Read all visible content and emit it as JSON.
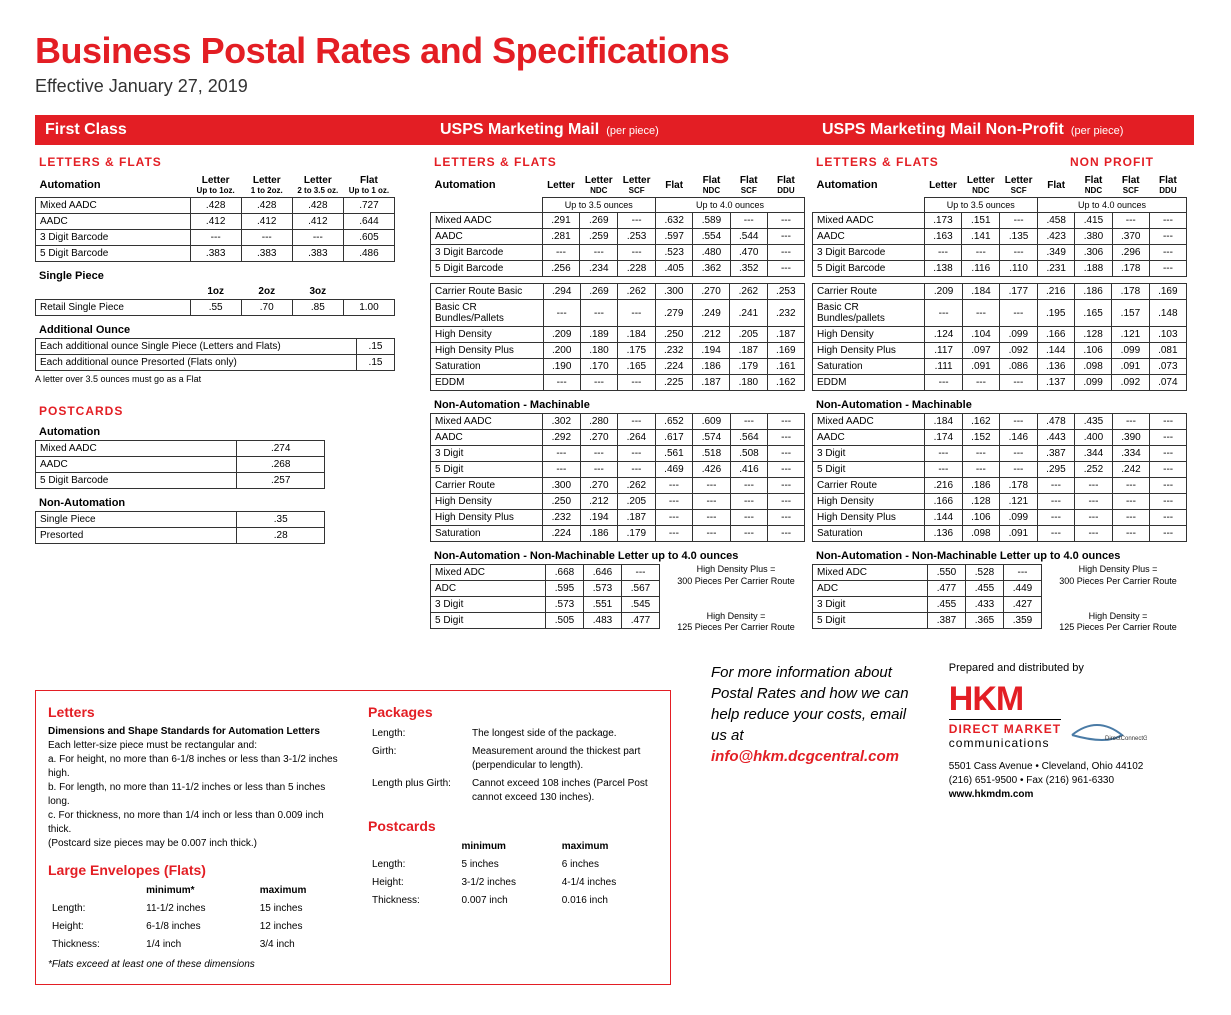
{
  "title": "Business Postal Rates and Specifications",
  "subtitle": "Effective January 27, 2019",
  "colors": {
    "accent": "#e31e24",
    "text": "#000000",
    "bg": "#ffffff"
  },
  "firstClass": {
    "header": "First Class",
    "section": "LETTERS & FLATS",
    "auto": {
      "title": "Automation",
      "cols": [
        "Letter",
        "Letter",
        "Letter",
        "Flat"
      ],
      "subcols": [
        "Up to 1oz.",
        "1 to 2oz.",
        "2 to 3.5 oz.",
        "Up to 1 oz."
      ],
      "rows": [
        {
          "label": "Mixed AADC",
          "v": [
            ".428",
            ".428",
            ".428",
            ".727"
          ]
        },
        {
          "label": "AADC",
          "v": [
            ".412",
            ".412",
            ".412",
            ".644"
          ]
        },
        {
          "label": "3 Digit Barcode",
          "v": [
            "---",
            "---",
            "---",
            ".605"
          ]
        },
        {
          "label": "5 Digit Barcode",
          "v": [
            ".383",
            ".383",
            ".383",
            ".486"
          ]
        }
      ]
    },
    "single": {
      "title": "Single Piece",
      "cols": [
        "1oz",
        "2oz",
        "3oz",
        ""
      ],
      "rows": [
        {
          "label": "Retail Single Piece",
          "v": [
            ".55",
            ".70",
            ".85",
            "1.00"
          ]
        }
      ]
    },
    "addl": {
      "title": "Additional Ounce",
      "rows": [
        {
          "label": "Each additional ounce Single Piece   (Letters and Flats)",
          "v": ".15"
        },
        {
          "label": "Each additional ounce Presorted       (Flats only)",
          "v": ".15"
        }
      ],
      "note": "A letter over 3.5 ounces must go as a Flat"
    },
    "postcards": {
      "header": "POSTCARDS",
      "auto": {
        "title": "Automation",
        "rows": [
          {
            "label": "Mixed AADC",
            "v": ".274"
          },
          {
            "label": "AADC",
            "v": ".268"
          },
          {
            "label": "5 Digit Barcode",
            "v": ".257"
          }
        ]
      },
      "non": {
        "title": "Non-Automation",
        "rows": [
          {
            "label": "Single Piece",
            "v": ".35"
          },
          {
            "label": "Presorted",
            "v": ".28"
          }
        ]
      }
    }
  },
  "marketing": {
    "header": "USPS Marketing Mail",
    "headerSub": "(per piece)",
    "section": "LETTERS & FLATS",
    "cols": [
      "Letter",
      "Letter",
      "Letter",
      "Flat",
      "Flat",
      "Flat",
      "Flat"
    ],
    "subcols": [
      "",
      "NDC",
      "SCF",
      "",
      "NDC",
      "SCF",
      "DDU"
    ],
    "span1": "Up to 3.5 ounces",
    "span2": "Up to 4.0 ounces",
    "auto": {
      "title": "Automation",
      "rows": [
        {
          "label": "Mixed AADC",
          "v": [
            ".291",
            ".269",
            "---",
            ".632",
            ".589",
            "---",
            "---"
          ]
        },
        {
          "label": "AADC",
          "v": [
            ".281",
            ".259",
            ".253",
            ".597",
            ".554",
            ".544",
            "---"
          ]
        },
        {
          "label": "3 Digit Barcode",
          "v": [
            "---",
            "---",
            "---",
            ".523",
            ".480",
            ".470",
            "---"
          ]
        },
        {
          "label": "5 Digit Barcode",
          "v": [
            ".256",
            ".234",
            ".228",
            ".405",
            ".362",
            ".352",
            "---"
          ]
        }
      ]
    },
    "cr": {
      "rows": [
        {
          "label": "Carrier Route Basic",
          "v": [
            ".294",
            ".269",
            ".262",
            ".300",
            ".270",
            ".262",
            ".253"
          ]
        },
        {
          "label": "Basic CR Bundles/Pallets",
          "v": [
            "---",
            "---",
            "---",
            ".279",
            ".249",
            ".241",
            ".232"
          ]
        },
        {
          "label": "High Density",
          "v": [
            ".209",
            ".189",
            ".184",
            ".250",
            ".212",
            ".205",
            ".187"
          ]
        },
        {
          "label": "High Density Plus",
          "v": [
            ".200",
            ".180",
            ".175",
            ".232",
            ".194",
            ".187",
            ".169"
          ]
        },
        {
          "label": "Saturation",
          "v": [
            ".190",
            ".170",
            ".165",
            ".224",
            ".186",
            ".179",
            ".161"
          ]
        },
        {
          "label": "EDDM",
          "v": [
            "---",
            "---",
            "---",
            ".225",
            ".187",
            ".180",
            ".162"
          ]
        }
      ]
    },
    "nam": {
      "title": "Non-Automation - Machinable",
      "rows": [
        {
          "label": "Mixed AADC",
          "v": [
            ".302",
            ".280",
            "---",
            ".652",
            ".609",
            "---",
            "---"
          ]
        },
        {
          "label": "AADC",
          "v": [
            ".292",
            ".270",
            ".264",
            ".617",
            ".574",
            ".564",
            "---"
          ]
        },
        {
          "label": "3 Digit",
          "v": [
            "---",
            "---",
            "---",
            ".561",
            ".518",
            ".508",
            "---"
          ]
        },
        {
          "label": "5 Digit",
          "v": [
            "---",
            "---",
            "---",
            ".469",
            ".426",
            ".416",
            "---"
          ]
        },
        {
          "label": "Carrier Route",
          "v": [
            ".300",
            ".270",
            ".262",
            "---",
            "---",
            "---",
            "---"
          ]
        },
        {
          "label": "High Density",
          "v": [
            ".250",
            ".212",
            ".205",
            "---",
            "---",
            "---",
            "---"
          ]
        },
        {
          "label": "High Density Plus",
          "v": [
            ".232",
            ".194",
            ".187",
            "---",
            "---",
            "---",
            "---"
          ]
        },
        {
          "label": "Saturation",
          "v": [
            ".224",
            ".186",
            ".179",
            "---",
            "---",
            "---",
            "---"
          ]
        }
      ]
    },
    "nanm": {
      "title": "Non-Automation - Non-Machinable Letter up to 4.0 ounces",
      "rows": [
        {
          "label": "Mixed ADC",
          "v": [
            ".668",
            ".646",
            "---"
          ]
        },
        {
          "label": "ADC",
          "v": [
            ".595",
            ".573",
            ".567"
          ]
        },
        {
          "label": "3 Digit",
          "v": [
            ".573",
            ".551",
            ".545"
          ]
        },
        {
          "label": "5 Digit",
          "v": [
            ".505",
            ".483",
            ".477"
          ]
        }
      ],
      "side": [
        "High Density Plus =",
        "300 Pieces Per Carrier Route",
        "",
        "High Density =",
        "125 Pieces Per Carrier Route"
      ]
    }
  },
  "nonprofit": {
    "header": "USPS Marketing Mail Non-Profit",
    "headerSub": "(per piece)",
    "section": "LETTERS & FLATS",
    "npLabel": "NON PROFIT",
    "auto": {
      "title": "Automation",
      "rows": [
        {
          "label": "Mixed AADC",
          "v": [
            ".173",
            ".151",
            "---",
            ".458",
            ".415",
            "---",
            "---"
          ]
        },
        {
          "label": "AADC",
          "v": [
            ".163",
            ".141",
            ".135",
            ".423",
            ".380",
            ".370",
            "---"
          ]
        },
        {
          "label": "3 Digit Barcode",
          "v": [
            "---",
            "---",
            "---",
            ".349",
            ".306",
            ".296",
            "---"
          ]
        },
        {
          "label": "5 Digit Barcode",
          "v": [
            ".138",
            ".116",
            ".110",
            ".231",
            ".188",
            ".178",
            "---"
          ]
        }
      ]
    },
    "cr": {
      "rows": [
        {
          "label": "Carrier Route",
          "v": [
            ".209",
            ".184",
            ".177",
            ".216",
            ".186",
            ".178",
            ".169"
          ]
        },
        {
          "label": "Basic CR Bundles/pallets",
          "v": [
            "---",
            "---",
            "---",
            ".195",
            ".165",
            ".157",
            ".148"
          ]
        },
        {
          "label": "High Density",
          "v": [
            ".124",
            ".104",
            ".099",
            ".166",
            ".128",
            ".121",
            ".103"
          ]
        },
        {
          "label": "High Density Plus",
          "v": [
            ".117",
            ".097",
            ".092",
            ".144",
            ".106",
            ".099",
            ".081"
          ]
        },
        {
          "label": "Saturation",
          "v": [
            ".111",
            ".091",
            ".086",
            ".136",
            ".098",
            ".091",
            ".073"
          ]
        },
        {
          "label": "EDDM",
          "v": [
            "---",
            "---",
            "---",
            ".137",
            ".099",
            ".092",
            ".074"
          ]
        }
      ]
    },
    "nam": {
      "title": "Non-Automation - Machinable",
      "rows": [
        {
          "label": "Mixed AADC",
          "v": [
            ".184",
            ".162",
            "---",
            ".478",
            ".435",
            "---",
            "---"
          ]
        },
        {
          "label": "AADC",
          "v": [
            ".174",
            ".152",
            ".146",
            ".443",
            ".400",
            ".390",
            "---"
          ]
        },
        {
          "label": "3 Digit",
          "v": [
            "---",
            "---",
            "---",
            ".387",
            ".344",
            ".334",
            "---"
          ]
        },
        {
          "label": "5 Digit",
          "v": [
            "---",
            "---",
            "---",
            ".295",
            ".252",
            ".242",
            "---"
          ]
        },
        {
          "label": "Carrier Route",
          "v": [
            ".216",
            ".186",
            ".178",
            "---",
            "---",
            "---",
            "---"
          ]
        },
        {
          "label": "High Density",
          "v": [
            ".166",
            ".128",
            ".121",
            "---",
            "---",
            "---",
            "---"
          ]
        },
        {
          "label": "High Density Plus",
          "v": [
            ".144",
            ".106",
            ".099",
            "---",
            "---",
            "---",
            "---"
          ]
        },
        {
          "label": "Saturation",
          "v": [
            ".136",
            ".098",
            ".091",
            "---",
            "---",
            "---",
            "---"
          ]
        }
      ]
    },
    "nanm": {
      "title": "Non-Automation - Non-Machinable Letter up to 4.0 ounces",
      "rows": [
        {
          "label": "Mixed ADC",
          "v": [
            ".550",
            ".528",
            "---"
          ]
        },
        {
          "label": "ADC",
          "v": [
            ".477",
            ".455",
            ".449"
          ]
        },
        {
          "label": "3 Digit",
          "v": [
            ".455",
            ".433",
            ".427"
          ]
        },
        {
          "label": "5 Digit",
          "v": [
            ".387",
            ".365",
            ".359"
          ]
        }
      ]
    }
  },
  "specs": {
    "letters": {
      "title": "Letters",
      "sub": "Dimensions and Shape Standards for Automation Letters",
      "intro": "Each letter-size piece must be rectangular and:",
      "items": [
        "a.  For height, no more than 6-1/8 inches or less than 3-1/2 inches high.",
        "b.  For length, no more than 11-1/2 inches or less than 5 inches long.",
        "c.  For thickness, no more than 1/4 inch or less than 0.009 inch thick.",
        "     (Postcard size pieces may be 0.007 inch thick.)"
      ]
    },
    "flats": {
      "title": "Large Envelopes (Flats)",
      "cols": [
        "minimum*",
        "maximum"
      ],
      "rows": [
        {
          "label": "Length:",
          "v": [
            "11-1/2 inches",
            "15 inches"
          ]
        },
        {
          "label": "Height:",
          "v": [
            "6-1/8 inches",
            "12 inches"
          ]
        },
        {
          "label": "Thickness:",
          "v": [
            "1/4 inch",
            "3/4 inch"
          ]
        }
      ],
      "note": "*Flats exceed at least one of these dimensions"
    },
    "packages": {
      "title": "Packages",
      "rows": [
        {
          "label": "Length:",
          "v": "The longest side of the package."
        },
        {
          "label": "Girth:",
          "v": "Measurement around the thickest part (perpendicular to length)."
        },
        {
          "label": "Length plus Girth:",
          "v": "Cannot exceed 108 inches (Parcel Post cannot exceed 130 inches)."
        }
      ]
    },
    "postcards": {
      "title": "Postcards",
      "cols": [
        "minimum",
        "maximum"
      ],
      "rows": [
        {
          "label": "Length:",
          "v": [
            "5 inches",
            "6 inches"
          ]
        },
        {
          "label": "Height:",
          "v": [
            "3-1/2 inches",
            "4-1/4 inches"
          ]
        },
        {
          "label": "Thickness:",
          "v": [
            "0.007 inch",
            "0.016 inch"
          ]
        }
      ]
    }
  },
  "contact": {
    "text1": "For more information about Postal Rates and how we can help reduce your costs, email us at",
    "email": "info@hkm.dcgcentral.com",
    "prepared": "Prepared and distributed by",
    "logo": "HKM",
    "tag1": "DIRECT MARKET",
    "tag2": "communications",
    "addr": "5501 Cass Avenue • Cleveland, Ohio 44102",
    "phone": "(216) 651-9500 • Fax (216) 961-6330",
    "web": "www.hkmdm.com"
  }
}
